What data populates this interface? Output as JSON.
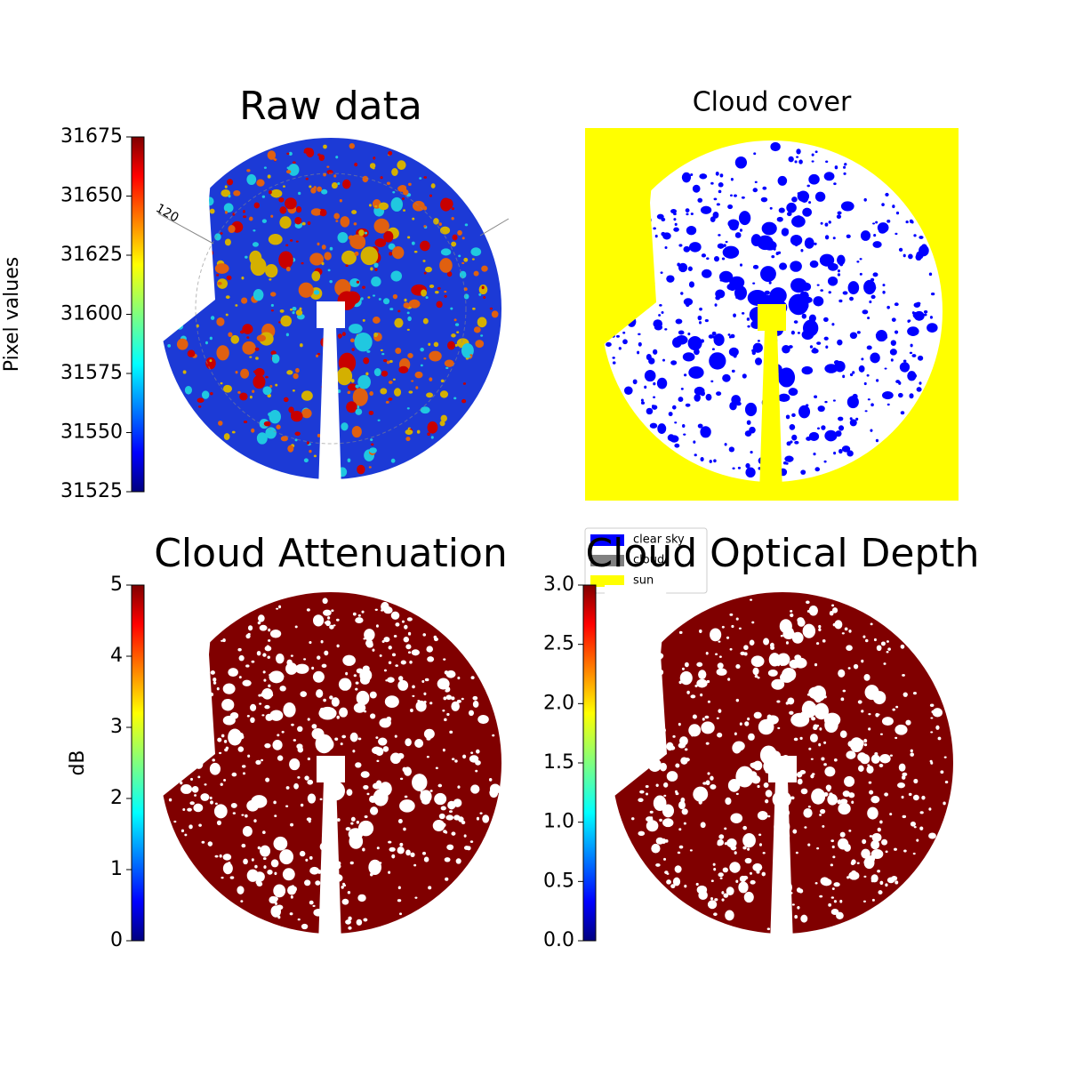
{
  "chart_data": [
    {
      "type": "heatmap",
      "title": "Raw data",
      "colorbar_label": "Pixel values",
      "clim": [
        31525,
        31675
      ],
      "cticks": [
        31525,
        31550,
        31575,
        31600,
        31625,
        31650,
        31675
      ],
      "colormap": "jet",
      "annotation": "120"
    },
    {
      "type": "categorical",
      "title": "Cloud cover",
      "legend": [
        {
          "name": "clear sky",
          "color": "#0000ff"
        },
        {
          "name": "cloud",
          "color": "#808080"
        },
        {
          "name": "sun",
          "color": "#ffff00"
        }
      ]
    },
    {
      "type": "heatmap",
      "title": "Cloud Attenuation",
      "colorbar_label": "dB",
      "clim": [
        0,
        5
      ],
      "cticks": [
        0,
        1,
        2,
        3,
        4,
        5
      ],
      "colormap": "jet"
    },
    {
      "type": "heatmap",
      "title": "Cloud Optical Depth",
      "clim": [
        0,
        3
      ],
      "cticks": [
        {
          "value": 0,
          "label": "0.0"
        },
        0.5,
        {
          "value": 1,
          "label": "1.0"
        },
        1.5,
        {
          "value": 2,
          "label": "2.0"
        },
        2.5,
        {
          "value": 3,
          "label": "3.0"
        }
      ],
      "colormap": "jet"
    }
  ]
}
